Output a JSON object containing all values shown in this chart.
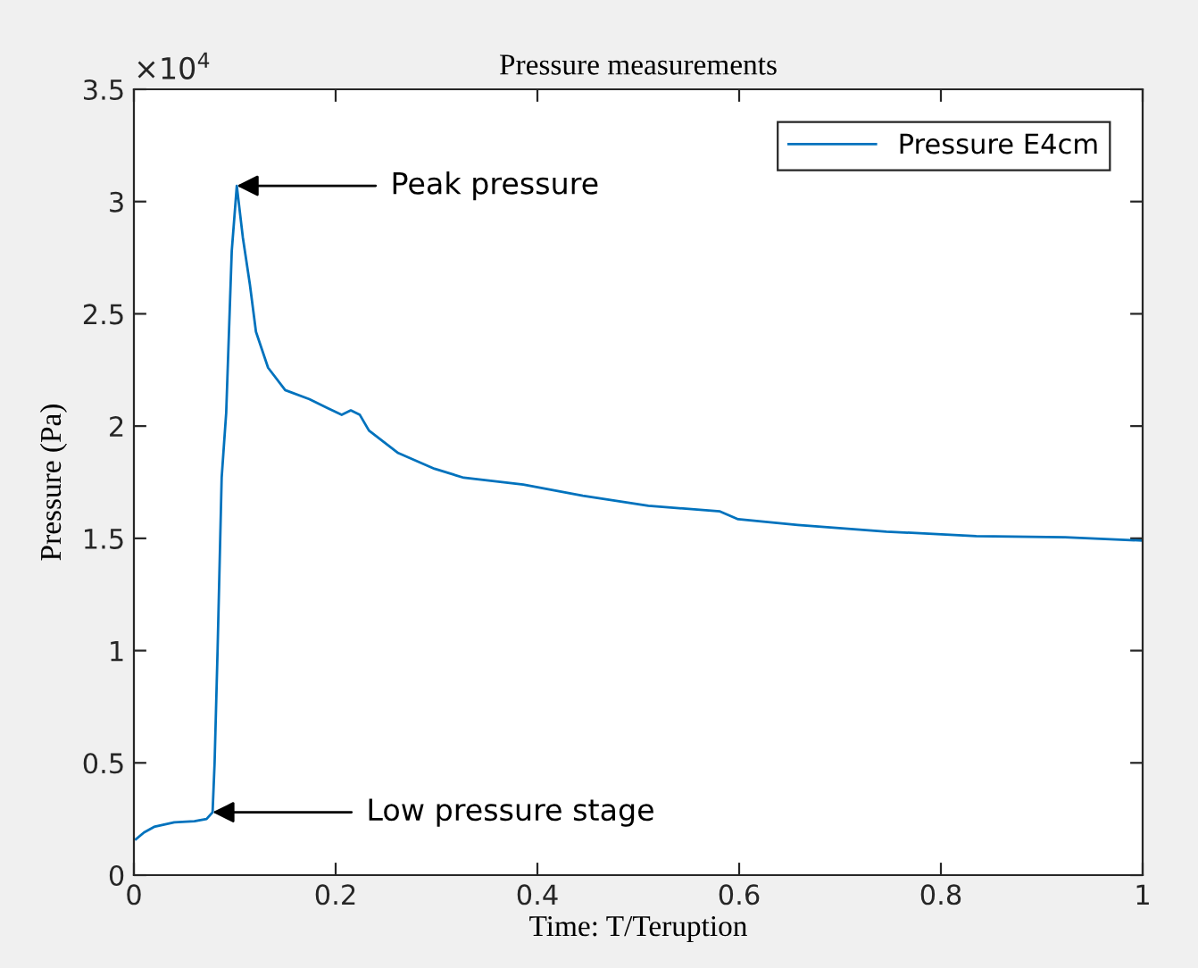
{
  "chart_data": {
    "type": "line",
    "title": "Pressure measurements",
    "xlabel": "Time: T/Teruption",
    "ylabel": "Pressure (Pa)",
    "xlim": [
      0,
      1
    ],
    "xticks": [
      0,
      0.2,
      0.4,
      0.6,
      0.8,
      1
    ],
    "ylim": [
      0,
      3.5
    ],
    "yticks": [
      0,
      0.5,
      1,
      1.5,
      2,
      2.5,
      3,
      3.5
    ],
    "grid": false,
    "legend": "top right",
    "line_style": "solid",
    "marker": "none",
    "annotations": [
      "×10$^{4}$",
      {
        "text": "Peak pressure",
        "x": 0.102,
        "y": 3.07
      },
      {
        "text": "Low pressure stage",
        "x": 0.078,
        "y": 0.28
      }
    ],
    "series": [
      {
        "name": "Pressure E4cm",
        "color": "#0072bd",
        "x": [
          0.002,
          0.01,
          0.02,
          0.04,
          0.06,
          0.072,
          0.078,
          0.08,
          0.083,
          0.087,
          0.0915,
          0.097,
          0.102,
          0.108,
          0.115,
          0.121,
          0.133,
          0.15,
          0.174,
          0.192,
          0.206,
          0.215,
          0.224,
          0.233,
          0.262,
          0.298,
          0.327,
          0.386,
          0.445,
          0.51,
          0.581,
          0.599,
          0.658,
          0.746,
          0.835,
          0.923,
          1.0
        ],
        "values": [
          0.16,
          0.19,
          0.215,
          0.235,
          0.24,
          0.25,
          0.28,
          0.5,
          1.01,
          1.77,
          2.06,
          2.78,
          3.07,
          2.84,
          2.63,
          2.42,
          2.26,
          2.16,
          2.12,
          2.08,
          2.05,
          2.07,
          2.05,
          1.98,
          1.88,
          1.81,
          1.77,
          1.74,
          1.69,
          1.645,
          1.62,
          1.585,
          1.56,
          1.53,
          1.51,
          1.505,
          1.49
        ]
      }
    ]
  }
}
